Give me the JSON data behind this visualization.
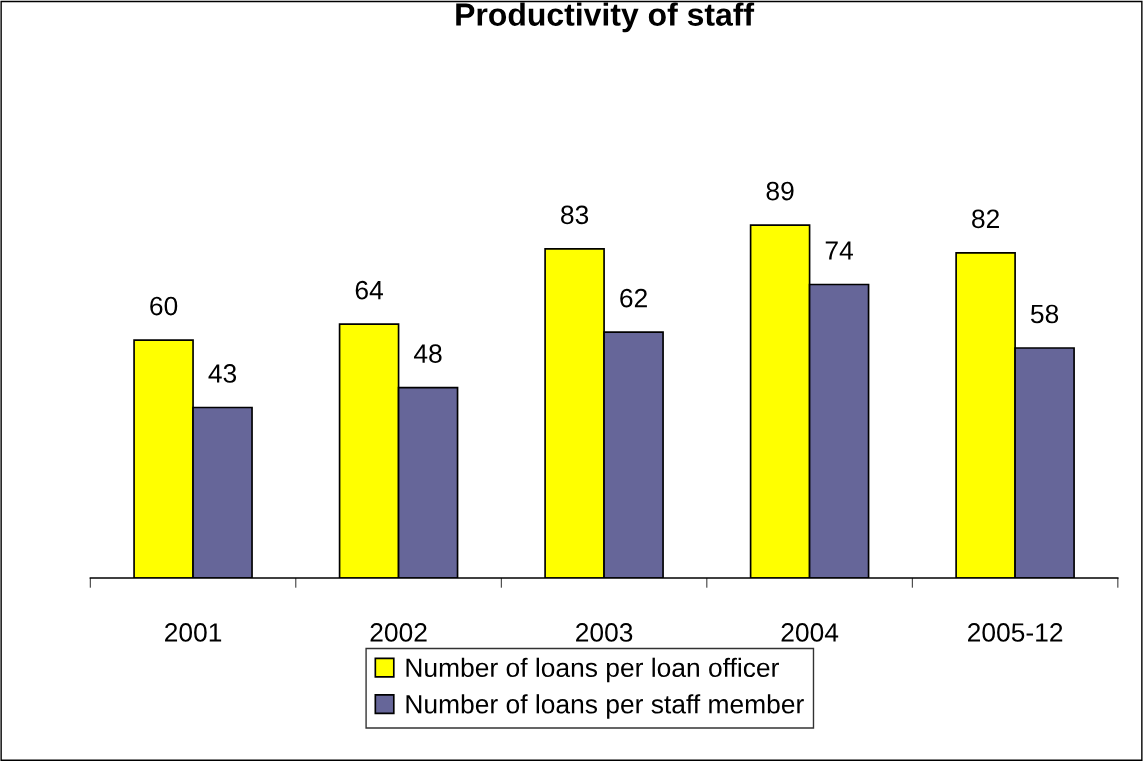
{
  "chart_data": {
    "type": "bar",
    "title": "Productivity of staff",
    "categories": [
      "2001",
      "2002",
      "2003",
      "2004",
      "2005-12"
    ],
    "series": [
      {
        "name": "Number of loans per loan officer",
        "color": "#ffff00",
        "values": [
          60,
          64,
          83,
          89,
          82
        ]
      },
      {
        "name": "Number of loans per staff member",
        "color": "#666699",
        "values": [
          43,
          48,
          62,
          74,
          58
        ]
      }
    ],
    "data_labels": true,
    "legend": "bottom",
    "grid": false
  }
}
